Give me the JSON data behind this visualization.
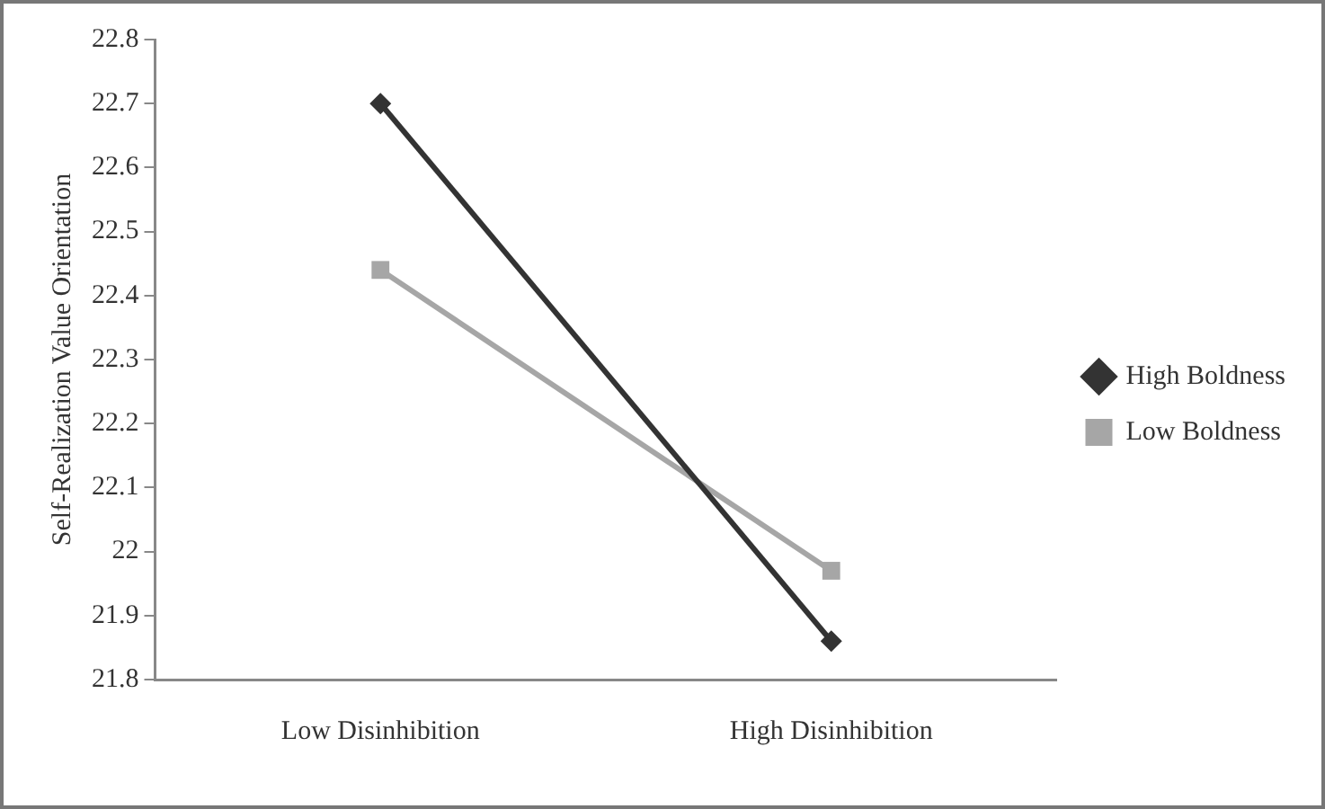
{
  "chart_data": {
    "type": "line",
    "ylabel": "Self-Realization Value Orientation",
    "categories": [
      "Low Disinhibition",
      "High Disinhibition"
    ],
    "series": [
      {
        "name": "High Boldness",
        "color": "#333333",
        "values": [
          22.7,
          21.86
        ],
        "marker": "diamond"
      },
      {
        "name": "Low Boldness",
        "color": "#a6a6a6",
        "values": [
          22.44,
          21.97
        ],
        "marker": "square"
      }
    ],
    "ylim": [
      21.8,
      22.8
    ],
    "yticks": [
      {
        "value": 21.8,
        "label": "21.8"
      },
      {
        "value": 21.9,
        "label": "21.9"
      },
      {
        "value": 22,
        "label": "22"
      },
      {
        "value": 22.1,
        "label": "22.1"
      },
      {
        "value": 22.2,
        "label": "22.2"
      },
      {
        "value": 22.3,
        "label": "22.3"
      },
      {
        "value": 22.4,
        "label": "22.4"
      },
      {
        "value": 22.5,
        "label": "22.5"
      },
      {
        "value": 22.6,
        "label": "22.6"
      },
      {
        "value": 22.7,
        "label": "22.7"
      },
      {
        "value": 22.8,
        "label": "22.8"
      }
    ],
    "grid": false,
    "legend": "right",
    "line_style": "solid"
  }
}
